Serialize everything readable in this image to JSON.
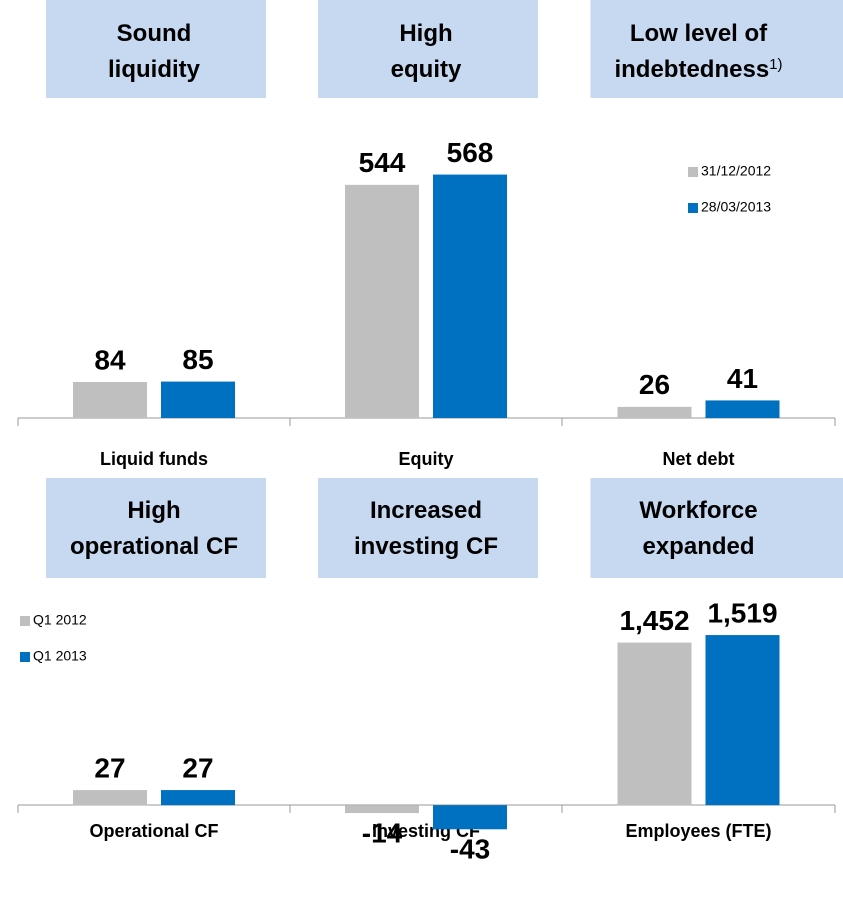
{
  "chart_data": [
    {
      "type": "bar",
      "headers": [
        [
          "Sound",
          "liquidity"
        ],
        [
          "High",
          "equity"
        ],
        [
          "Low level of",
          "indebtedness"
        ]
      ],
      "note": "1)",
      "categories": [
        "Liquid funds",
        "Equity",
        "Net debt"
      ],
      "series": [
        {
          "name": "31/12/2012",
          "color": "#bfbfbf",
          "values": [
            84,
            544,
            26
          ]
        },
        {
          "name": "28/03/2013",
          "color": "#0070c0",
          "values": [
            85,
            568,
            41
          ]
        }
      ],
      "ylims": [
        [
          0,
          700
        ],
        [
          0,
          700
        ],
        [
          0,
          700
        ]
      ],
      "legend": "upper right"
    },
    {
      "type": "bar",
      "headers": [
        [
          "High",
          "operational CF"
        ],
        [
          "Increased",
          "investing CF"
        ],
        [
          "Workforce",
          "expanded"
        ]
      ],
      "categories": [
        "Operational CF",
        "Investing CF",
        "Employees (FTE)"
      ],
      "series": [
        {
          "name": "Q1 2012",
          "color": "#bfbfbf",
          "values": [
            27,
            -14,
            1452
          ],
          "value_labels": [
            "27",
            "-14",
            "1,452"
          ]
        },
        {
          "name": "Q1 2013",
          "color": "#0070c0",
          "values": [
            27,
            -43,
            1519
          ],
          "value_labels": [
            "27",
            "-43",
            "1,519"
          ]
        }
      ],
      "ylims": [
        [
          -80,
          320
        ],
        [
          -80,
          320
        ],
        [
          -400,
          1600
        ]
      ],
      "legend": "upper left"
    }
  ]
}
